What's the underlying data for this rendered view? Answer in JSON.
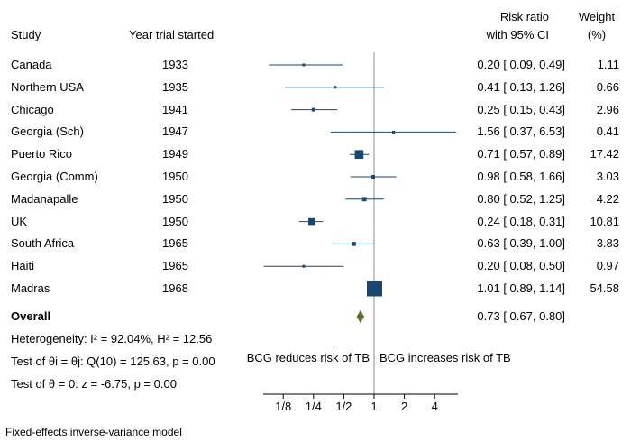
{
  "headers": {
    "study": "Study",
    "year": "Year trial started",
    "rr_line1": "Risk ratio",
    "rr_line2": "with 95% CI",
    "weight_line1": "Weight",
    "weight_line2": "(%)"
  },
  "overall": {
    "label": "Overall",
    "ci_text": "0.73 [ 0.67, 0.80]"
  },
  "stats": {
    "heterogeneity": "Heterogeneity: I² = 92.04%, H² = 12.56",
    "test_equal": "Test of θi = θj: Q(10) = 125.63, p = 0.00",
    "test_zero": "Test of θ = 0: z = -6.75, p = 0.00"
  },
  "direction": {
    "left": "BCG reduces risk of TB",
    "right": "BCG increases risk of TB"
  },
  "footnote": "Fixed-effects inverse-variance model",
  "colors": {
    "marker": "#1a476f",
    "diamond": "#55752f",
    "ref_line": "#8c8c8c"
  },
  "chart_data": {
    "type": "forest",
    "x_scale": "log2",
    "xlim": [
      0.1,
      6.53
    ],
    "ticks": [
      0.125,
      0.25,
      0.5,
      1,
      2,
      4
    ],
    "tick_labels": [
      "1/8",
      "1/4",
      "1/2",
      "1",
      "2",
      "4"
    ],
    "reference_line": 1,
    "studies": [
      {
        "study": "Canada",
        "year": "1933",
        "rr": 0.2,
        "lo": 0.09,
        "hi": 0.49,
        "ci_text": "0.20 [ 0.09, 0.49]",
        "weight": 1.11,
        "weight_text": "1.11"
      },
      {
        "study": "Northern USA",
        "year": "1935",
        "rr": 0.41,
        "lo": 0.13,
        "hi": 1.26,
        "ci_text": "0.41 [ 0.13, 1.26]",
        "weight": 0.66,
        "weight_text": "0.66"
      },
      {
        "study": "Chicago",
        "year": "1941",
        "rr": 0.25,
        "lo": 0.15,
        "hi": 0.43,
        "ci_text": "0.25 [ 0.15, 0.43]",
        "weight": 2.96,
        "weight_text": "2.96"
      },
      {
        "study": "Georgia (Sch)",
        "year": "1947",
        "rr": 1.56,
        "lo": 0.37,
        "hi": 6.53,
        "ci_text": "1.56 [ 0.37, 6.53]",
        "weight": 0.41,
        "weight_text": "0.41"
      },
      {
        "study": "Puerto Rico",
        "year": "1949",
        "rr": 0.71,
        "lo": 0.57,
        "hi": 0.89,
        "ci_text": "0.71 [ 0.57, 0.89]",
        "weight": 17.42,
        "weight_text": "17.42"
      },
      {
        "study": "Georgia (Comm)",
        "year": "1950",
        "rr": 0.98,
        "lo": 0.58,
        "hi": 1.66,
        "ci_text": "0.98 [ 0.58, 1.66]",
        "weight": 3.03,
        "weight_text": "3.03"
      },
      {
        "study": "Madanapalle",
        "year": "1950",
        "rr": 0.8,
        "lo": 0.52,
        "hi": 1.25,
        "ci_text": "0.80 [ 0.52, 1.25]",
        "weight": 4.22,
        "weight_text": "4.22"
      },
      {
        "study": "UK",
        "year": "1950",
        "rr": 0.24,
        "lo": 0.18,
        "hi": 0.31,
        "ci_text": "0.24 [ 0.18, 0.31]",
        "weight": 10.81,
        "weight_text": "10.81"
      },
      {
        "study": "South Africa",
        "year": "1965",
        "rr": 0.63,
        "lo": 0.39,
        "hi": 1.0,
        "ci_text": "0.63 [ 0.39, 1.00]",
        "weight": 3.83,
        "weight_text": "3.83"
      },
      {
        "study": "Haiti",
        "year": "1965",
        "rr": 0.2,
        "lo": 0.08,
        "hi": 0.5,
        "ci_text": "0.20 [ 0.08, 0.50]",
        "weight": 0.97,
        "weight_text": "0.97"
      },
      {
        "study": "Madras",
        "year": "1968",
        "rr": 1.01,
        "lo": 0.89,
        "hi": 1.14,
        "ci_text": "1.01 [ 0.89, 1.14]",
        "weight": 54.58,
        "weight_text": "54.58"
      }
    ],
    "overall": {
      "rr": 0.73,
      "lo": 0.67,
      "hi": 0.8
    }
  }
}
